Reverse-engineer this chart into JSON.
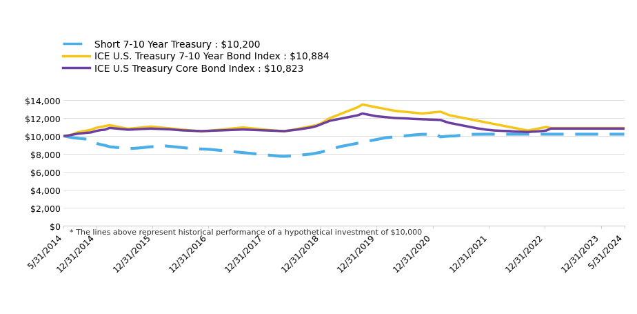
{
  "x_labels": [
    "5/31/2014",
    "12/31/2014",
    "12/31/2015",
    "12/31/2016",
    "12/31/2017",
    "12/31/2018",
    "12/31/2019",
    "12/31/2020",
    "12/31/2021",
    "12/31/2022",
    "12/31/2023",
    "5/31/2024"
  ],
  "x_tick_positions": [
    0,
    7,
    19,
    31,
    43,
    55,
    67,
    79,
    91,
    103,
    115,
    122
  ],
  "series": [
    {
      "label": "Short 7-10 Year Treasury : $10,200",
      "color": "#4BAEE8",
      "style": "dashed",
      "linewidth": 3.0,
      "values": [
        10000,
        9900,
        9800,
        9750,
        9700,
        9650,
        9600,
        9200,
        9050,
        8950,
        8800,
        8750,
        8700,
        8650,
        8600,
        8620,
        8650,
        8700,
        8750,
        8800,
        8820,
        8850,
        8900,
        8850,
        8800,
        8750,
        8700,
        8650,
        8600,
        8580,
        8550,
        8530,
        8500,
        8450,
        8400,
        8350,
        8300,
        8250,
        8200,
        8150,
        8100,
        8050,
        8000,
        7950,
        7900,
        7850,
        7800,
        7750,
        7740,
        7760,
        7800,
        7850,
        7900,
        7950,
        8000,
        8100,
        8200,
        8350,
        8500,
        8650,
        8800,
        8900,
        9000,
        9100,
        9200,
        9300,
        9400,
        9500,
        9600,
        9700,
        9800,
        9850,
        9900,
        9950,
        10000,
        10050,
        10100,
        10150,
        10180,
        10190,
        10195,
        10200,
        9900,
        9950,
        9990,
        10000,
        10050,
        10100,
        10150,
        10180,
        10190,
        10195,
        10200,
        10200,
        10200,
        10200,
        10200,
        10200,
        10200,
        10200,
        10200,
        10200,
        10200,
        10200,
        10200,
        10200,
        10200,
        10200,
        10200,
        10200,
        10200,
        10200,
        10200,
        10200,
        10200,
        10200,
        10200,
        10200,
        10200,
        10200,
        10200,
        10200,
        10200
      ]
    },
    {
      "label": "ICE U.S. Treasury 7-10 Year Bond Index : $10,884",
      "color": "#F5C518",
      "style": "solid",
      "linewidth": 2.5,
      "values": [
        10000,
        10050,
        10200,
        10400,
        10500,
        10600,
        10700,
        10900,
        11000,
        11100,
        11200,
        11100,
        11000,
        10900,
        10800,
        10850,
        10900,
        10950,
        11000,
        11050,
        11000,
        10950,
        10900,
        10850,
        10800,
        10750,
        10700,
        10650,
        10600,
        10550,
        10500,
        10550,
        10600,
        10650,
        10700,
        10750,
        10800,
        10850,
        10900,
        10950,
        10900,
        10850,
        10800,
        10750,
        10700,
        10650,
        10600,
        10550,
        10500,
        10600,
        10700,
        10800,
        10900,
        11000,
        11100,
        11200,
        11400,
        11700,
        12000,
        12200,
        12400,
        12600,
        12800,
        13000,
        13200,
        13500,
        13400,
        13300,
        13200,
        13100,
        13000,
        12900,
        12800,
        12750,
        12700,
        12650,
        12600,
        12550,
        12500,
        12550,
        12600,
        12650,
        12700,
        12500,
        12300,
        12200,
        12100,
        12000,
        11900,
        11800,
        11700,
        11600,
        11500,
        11400,
        11300,
        11200,
        11100,
        11000,
        10900,
        10800,
        10700,
        10600,
        10700,
        10800,
        10900,
        11000,
        10884,
        10884,
        10884,
        10884,
        10884,
        10884,
        10884,
        10884,
        10884,
        10884,
        10884,
        10884,
        10884,
        10884,
        10884,
        10884,
        10884
      ]
    },
    {
      "label": "ICE U.S Treasury Core Bond Index : $10,823",
      "color": "#6B3FA0",
      "style": "solid",
      "linewidth": 2.5,
      "values": [
        10000,
        10050,
        10150,
        10250,
        10300,
        10350,
        10400,
        10550,
        10650,
        10700,
        10900,
        10850,
        10800,
        10750,
        10700,
        10720,
        10750,
        10780,
        10800,
        10820,
        10800,
        10780,
        10760,
        10740,
        10700,
        10660,
        10620,
        10600,
        10580,
        10560,
        10540,
        10560,
        10580,
        10600,
        10620,
        10640,
        10660,
        10680,
        10700,
        10720,
        10700,
        10680,
        10660,
        10640,
        10620,
        10600,
        10580,
        10560,
        10540,
        10600,
        10660,
        10720,
        10800,
        10880,
        10960,
        11100,
        11300,
        11500,
        11700,
        11800,
        11900,
        12000,
        12100,
        12200,
        12300,
        12500,
        12400,
        12300,
        12200,
        12150,
        12100,
        12050,
        12000,
        11980,
        11960,
        11940,
        11900,
        11880,
        11860,
        11840,
        11820,
        11800,
        11780,
        11600,
        11450,
        11350,
        11250,
        11150,
        11050,
        10950,
        10850,
        10780,
        10700,
        10650,
        10600,
        10580,
        10560,
        10540,
        10500,
        10480,
        10460,
        10440,
        10480,
        10500,
        10550,
        10600,
        10823,
        10823,
        10823,
        10823,
        10823,
        10823,
        10823,
        10823,
        10823,
        10823,
        10823,
        10823,
        10823,
        10823,
        10823,
        10823,
        10823
      ]
    }
  ],
  "ylim": [
    0,
    14000
  ],
  "yticks": [
    0,
    2000,
    4000,
    6000,
    8000,
    10000,
    12000,
    14000
  ],
  "footnote": "* The lines above represent historical performance of a hypothetical investment of $10,000",
  "bg_color": "#ffffff",
  "grid_color": "#d0d0d0",
  "legend_fontsize": 10,
  "tick_fontsize": 9
}
